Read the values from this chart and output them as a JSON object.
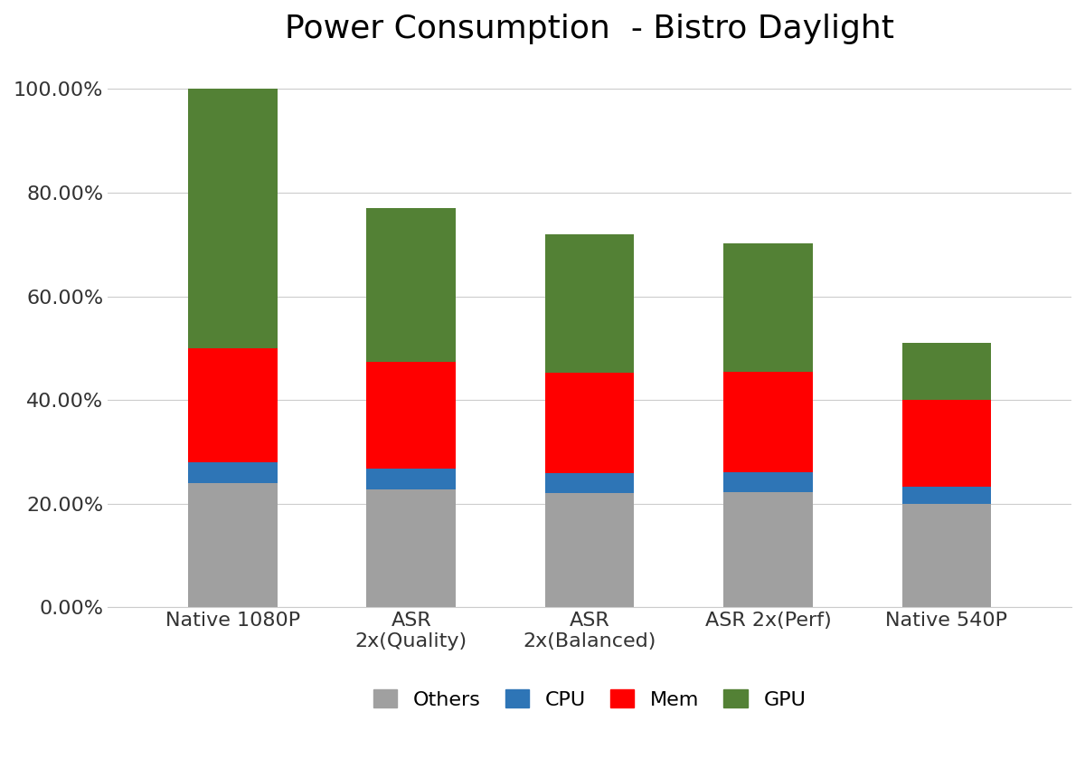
{
  "title": "Power Consumption  - Bistro Daylight",
  "categories": [
    "Native 1080P",
    "ASR\n2x(Quality)",
    "ASR\n2x(Balanced)",
    "ASR 2x(Perf)",
    "Native 540P"
  ],
  "series": {
    "Others": [
      0.24,
      0.228,
      0.22,
      0.222,
      0.2
    ],
    "CPU": [
      0.04,
      0.04,
      0.038,
      0.038,
      0.033
    ],
    "Mem": [
      0.22,
      0.205,
      0.195,
      0.195,
      0.168
    ],
    "GPU": [
      0.5,
      0.297,
      0.267,
      0.248,
      0.109
    ]
  },
  "colors": {
    "Others": "#A0A0A0",
    "CPU": "#2E75B6",
    "Mem": "#FF0000",
    "GPU": "#538135"
  },
  "ylim": [
    0,
    1.05
  ],
  "yticks": [
    0.0,
    0.2,
    0.4,
    0.6,
    0.8,
    1.0
  ],
  "yticklabels": [
    "0.00%",
    "20.00%",
    "40.00%",
    "60.00%",
    "80.00%",
    "100.00%"
  ],
  "background_color": "#FFFFFF",
  "title_fontsize": 26,
  "tick_fontsize": 16,
  "legend_fontsize": 16,
  "bar_width": 0.5,
  "legend_order": [
    "Others",
    "CPU",
    "Mem",
    "GPU"
  ]
}
